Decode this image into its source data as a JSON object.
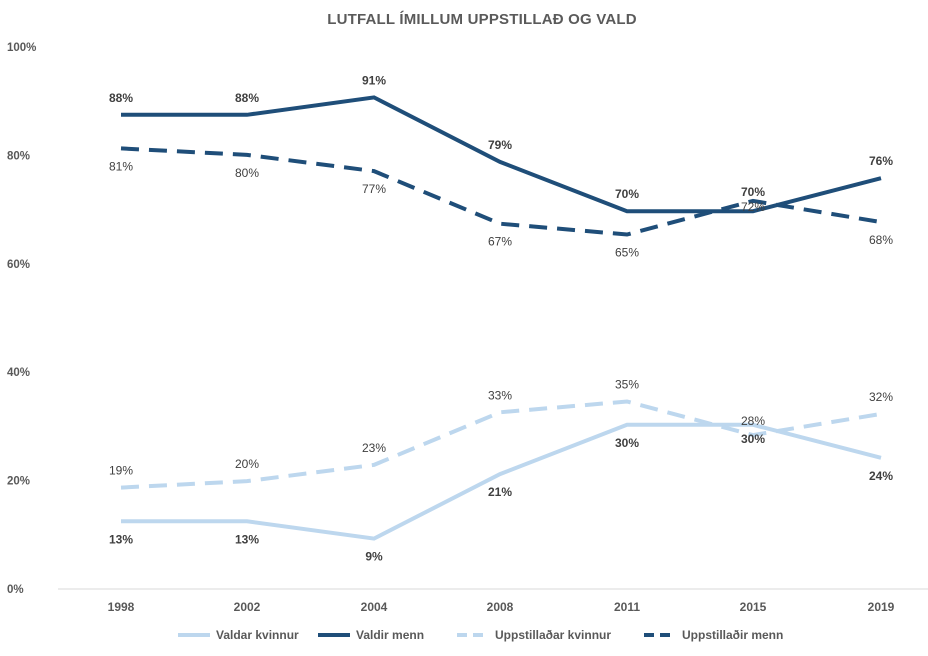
{
  "chart_data": {
    "type": "line",
    "title": "LUTFALL ÍMILLUM UPPSTILLAÐ OG VALD",
    "xlabel": "",
    "ylabel": "",
    "categories": [
      "1998",
      "2002",
      "2004",
      "2008",
      "2011",
      "2015",
      "2019"
    ],
    "ylim": [
      0,
      100
    ],
    "yticks": [
      0,
      20,
      40,
      60,
      80,
      100
    ],
    "ytick_labels": [
      "0%",
      "20%",
      "40%",
      "60%",
      "80%",
      "100%"
    ],
    "grid": false,
    "legend_position": "bottom",
    "series": [
      {
        "name": "Valdar kvinnur",
        "values": [
          12.5,
          12.5,
          9.3,
          21.2,
          30.3,
          30.3,
          24.2
        ],
        "labels": [
          "13%",
          "13%",
          "9%",
          "21%",
          "30%",
          "30%",
          "24%"
        ],
        "color": "#bdd7ee",
        "dashed": false,
        "label_bold": true
      },
      {
        "name": "Valdir menn",
        "values": [
          87.5,
          87.5,
          90.7,
          78.8,
          69.7,
          69.7,
          75.8
        ],
        "labels": [
          "88%",
          "88%",
          "91%",
          "79%",
          "70%",
          "70%",
          "76%"
        ],
        "color": "#1f4e79",
        "dashed": false,
        "label_bold": true
      },
      {
        "name": "Uppstillaðar kvinnur",
        "values": [
          18.7,
          19.9,
          22.9,
          32.6,
          34.6,
          28.4,
          32.3
        ],
        "labels": [
          "19%",
          "20%",
          "23%",
          "33%",
          "35%",
          "28%",
          "32%"
        ],
        "color": "#bdd7ee",
        "dashed": true,
        "label_bold": false
      },
      {
        "name": "Uppstillaðir menn",
        "values": [
          81.3,
          80.1,
          77.1,
          67.4,
          65.4,
          71.6,
          67.7
        ],
        "labels": [
          "81%",
          "80%",
          "77%",
          "67%",
          "65%",
          "72%",
          "68%"
        ],
        "color": "#1f4e79",
        "dashed": true,
        "label_bold": false
      }
    ]
  }
}
